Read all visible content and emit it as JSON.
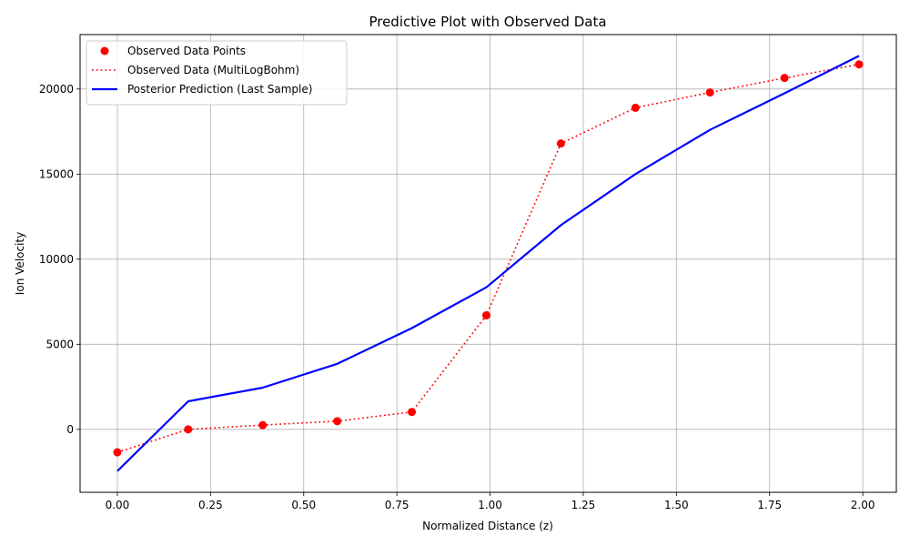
{
  "chart_data": {
    "type": "line",
    "title": "Predictive Plot with Observed Data",
    "xlabel": "Normalized Distance (z)",
    "ylabel": "Ion Velocity",
    "xlim": [
      -0.1,
      2.09
    ],
    "ylim": [
      -3700,
      23200
    ],
    "x_ticks": [
      0.0,
      0.25,
      0.5,
      0.75,
      1.0,
      1.25,
      1.5,
      1.75,
      2.0
    ],
    "x_tick_labels": [
      "0.00",
      "0.25",
      "0.50",
      "0.75",
      "1.00",
      "1.25",
      "1.50",
      "1.75",
      "2.00"
    ],
    "y_ticks": [
      0,
      5000,
      10000,
      15000,
      20000
    ],
    "y_tick_labels": [
      "0",
      "5000",
      "10000",
      "15000",
      "20000"
    ],
    "grid": true,
    "legend_position": "top-left",
    "series": [
      {
        "name": "Observed Data Points",
        "kind": "scatter",
        "color": "#ff0000",
        "x": [
          0.0,
          0.19,
          0.39,
          0.59,
          0.79,
          0.99,
          1.19,
          1.39,
          1.59,
          1.79,
          1.99
        ],
        "y": [
          -1350,
          0,
          250,
          480,
          1020,
          6700,
          16800,
          18900,
          19800,
          20650,
          21450
        ]
      },
      {
        "name": "Observed Data (MultiLogBohm)",
        "kind": "dotted-line",
        "color": "#ff0000",
        "x": [
          0.0,
          0.19,
          0.39,
          0.59,
          0.79,
          0.99,
          1.19,
          1.39,
          1.59,
          1.79,
          1.99
        ],
        "y": [
          -1350,
          0,
          250,
          480,
          1020,
          6700,
          16800,
          18900,
          19800,
          20650,
          21450
        ]
      },
      {
        "name": "Posterior Prediction (Last Sample)",
        "kind": "line",
        "color": "#0000ff",
        "x": [
          0.0,
          0.19,
          0.39,
          0.59,
          0.79,
          0.99,
          1.19,
          1.39,
          1.59,
          1.79,
          1.99
        ],
        "y": [
          -2450,
          1650,
          2450,
          3850,
          5950,
          8350,
          12000,
          15000,
          17600,
          19750,
          21950
        ]
      }
    ]
  }
}
